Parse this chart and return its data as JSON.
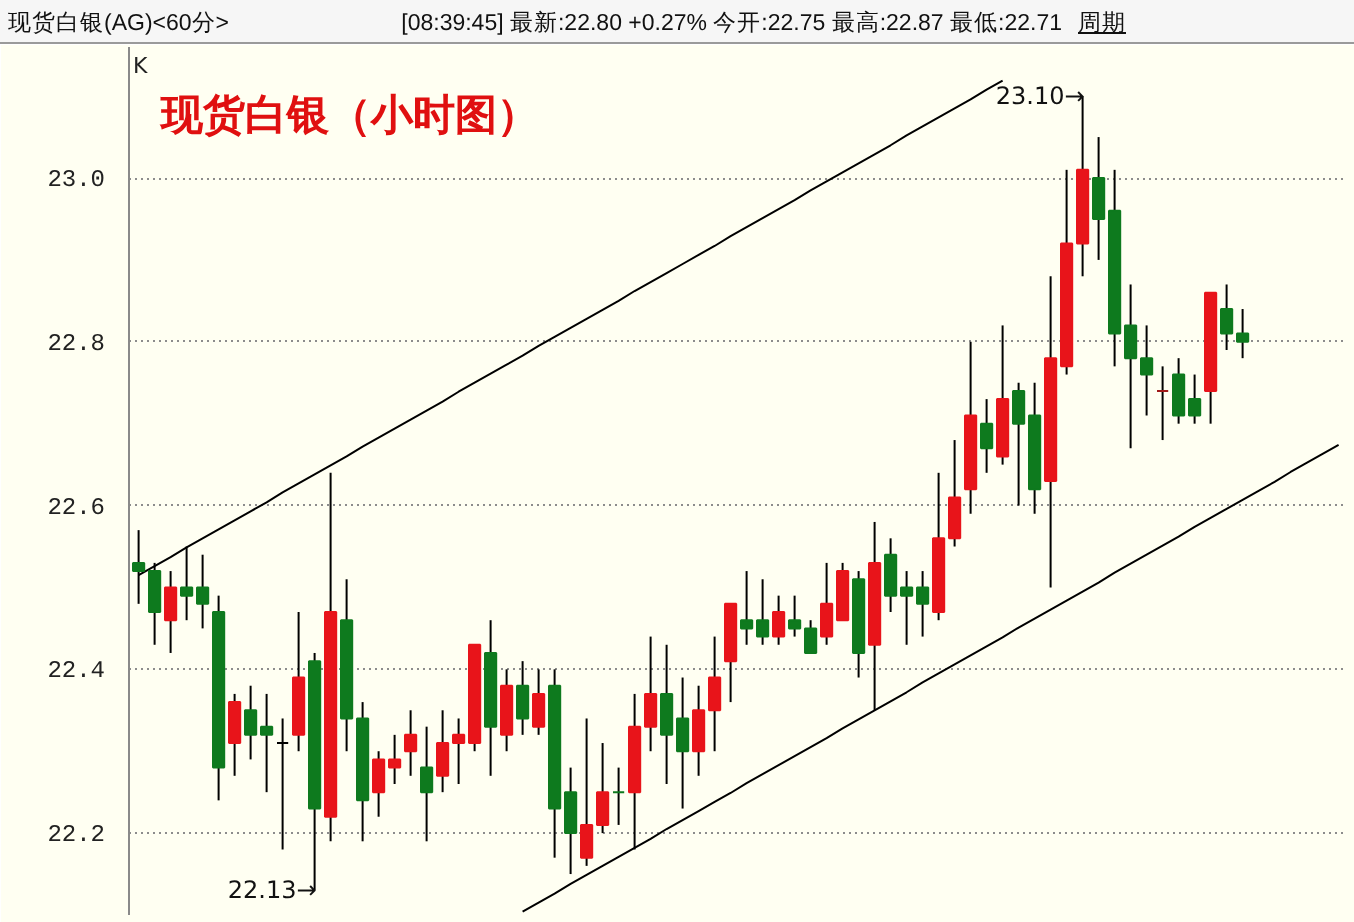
{
  "chart_data": {
    "type": "candlestick",
    "title": "现货白银（小时图）",
    "subtitle": "现货白银(AG)<60分>",
    "annotations": [
      "K",
      "[08:39:45] 最新:22.80 +0.27% 今开:22.75 最高:22.87 最低:22.71",
      "周期",
      "23.10→",
      "22.13→"
    ],
    "categories": [
      null,
      null,
      null,
      null,
      null,
      null,
      null,
      null,
      null,
      null,
      null,
      null,
      null,
      null,
      null,
      null,
      null,
      null,
      null,
      null,
      null,
      null,
      null,
      null,
      null,
      null,
      null,
      null,
      null,
      null,
      null,
      null,
      null,
      null,
      null,
      null,
      null,
      null,
      null,
      null,
      null,
      null,
      null,
      null,
      null,
      null,
      null,
      null,
      null,
      null,
      null,
      null,
      null,
      null,
      null,
      null,
      null,
      null,
      null,
      null,
      null,
      null,
      null,
      null,
      null,
      null,
      null,
      null,
      null,
      null,
      null,
      null,
      null,
      null,
      null,
      null
    ],
    "ohlc": [
      [
        22.53,
        22.57,
        22.48,
        22.52
      ],
      [
        22.52,
        22.53,
        22.43,
        22.47
      ],
      [
        22.46,
        22.52,
        22.42,
        22.5
      ],
      [
        22.5,
        22.55,
        22.46,
        22.49
      ],
      [
        22.5,
        22.54,
        22.45,
        22.48
      ],
      [
        22.47,
        22.49,
        22.24,
        22.28
      ],
      [
        22.31,
        22.37,
        22.27,
        22.36
      ],
      [
        22.35,
        22.38,
        22.29,
        22.32
      ],
      [
        22.33,
        22.37,
        22.25,
        22.32
      ],
      [
        22.31,
        22.34,
        22.18,
        22.31
      ],
      [
        22.32,
        22.47,
        22.3,
        22.39
      ],
      [
        22.41,
        22.42,
        22.13,
        22.23
      ],
      [
        22.22,
        22.64,
        22.19,
        22.47
      ],
      [
        22.46,
        22.51,
        22.3,
        22.34
      ],
      [
        22.34,
        22.36,
        22.19,
        22.24
      ],
      [
        22.25,
        22.3,
        22.22,
        22.29
      ],
      [
        22.28,
        22.32,
        22.26,
        22.29
      ],
      [
        22.3,
        22.35,
        22.27,
        22.32
      ],
      [
        22.28,
        22.33,
        22.19,
        22.25
      ],
      [
        22.27,
        22.35,
        22.25,
        22.31
      ],
      [
        22.31,
        22.34,
        22.26,
        22.32
      ],
      [
        22.31,
        22.43,
        22.3,
        22.43
      ],
      [
        22.42,
        22.46,
        22.27,
        22.33
      ],
      [
        22.32,
        22.4,
        22.3,
        22.38
      ],
      [
        22.38,
        22.41,
        22.32,
        22.34
      ],
      [
        22.33,
        22.4,
        22.32,
        22.37
      ],
      [
        22.38,
        22.4,
        22.17,
        22.23
      ],
      [
        22.25,
        22.28,
        22.15,
        22.2
      ],
      [
        22.17,
        22.34,
        22.16,
        22.21
      ],
      [
        22.21,
        22.31,
        22.2,
        22.25
      ],
      [
        22.25,
        22.28,
        22.21,
        22.25
      ],
      [
        22.25,
        22.37,
        22.18,
        22.33
      ],
      [
        22.33,
        22.44,
        22.3,
        22.37
      ],
      [
        22.37,
        22.43,
        22.26,
        22.32
      ],
      [
        22.34,
        22.39,
        22.23,
        22.3
      ],
      [
        22.3,
        22.38,
        22.27,
        22.35
      ],
      [
        22.35,
        22.44,
        22.3,
        22.39
      ],
      [
        22.41,
        22.48,
        22.36,
        22.48
      ],
      [
        22.46,
        22.52,
        22.43,
        22.45
      ],
      [
        22.46,
        22.51,
        22.43,
        22.44
      ],
      [
        22.44,
        22.49,
        22.43,
        22.47
      ],
      [
        22.46,
        22.49,
        22.44,
        22.45
      ],
      [
        22.45,
        22.46,
        22.42,
        22.42
      ],
      [
        22.44,
        22.53,
        22.43,
        22.48
      ],
      [
        22.46,
        22.53,
        22.46,
        22.52
      ],
      [
        22.51,
        22.52,
        22.39,
        22.42
      ],
      [
        22.43,
        22.58,
        22.35,
        22.53
      ],
      [
        22.54,
        22.56,
        22.47,
        22.49
      ],
      [
        22.5,
        22.52,
        22.43,
        22.49
      ],
      [
        22.5,
        22.52,
        22.44,
        22.48
      ],
      [
        22.47,
        22.64,
        22.46,
        22.56
      ],
      [
        22.56,
        22.68,
        22.55,
        22.61
      ],
      [
        22.62,
        22.8,
        22.59,
        22.71
      ],
      [
        22.7,
        22.73,
        22.64,
        22.67
      ],
      [
        22.66,
        22.82,
        22.65,
        22.73
      ],
      [
        22.74,
        22.75,
        22.6,
        22.7
      ],
      [
        22.71,
        22.75,
        22.59,
        22.62
      ],
      [
        22.63,
        22.88,
        22.5,
        22.78
      ],
      [
        22.77,
        23.01,
        22.76,
        22.92
      ],
      [
        22.92,
        23.1,
        22.88,
        23.01
      ],
      [
        23.0,
        23.05,
        22.9,
        22.95
      ],
      [
        22.96,
        23.01,
        22.77,
        22.81
      ],
      [
        22.82,
        22.87,
        22.67,
        22.78
      ],
      [
        22.78,
        22.82,
        22.71,
        22.76
      ],
      [
        22.74,
        22.77,
        22.68,
        22.74
      ],
      [
        22.76,
        22.78,
        22.7,
        22.71
      ],
      [
        22.73,
        22.76,
        22.7,
        22.71
      ],
      [
        22.74,
        22.86,
        22.7,
        22.86
      ],
      [
        22.84,
        22.87,
        22.79,
        22.81
      ],
      [
        22.81,
        22.84,
        22.78,
        22.8
      ],
      null,
      null,
      null,
      null,
      null,
      null
    ],
    "colors": [
      "#0e7a1e",
      "#0e7a1e",
      "#e8141a",
      "#0e7a1e",
      "#0e7a1e",
      "#0e7a1e",
      "#e8141a",
      "#0e7a1e",
      "#0e7a1e",
      "#000000",
      "#e8141a",
      "#0e7a1e",
      "#e8141a",
      "#0e7a1e",
      "#0e7a1e",
      "#e8141a",
      "#e8141a",
      "#e8141a",
      "#0e7a1e",
      "#e8141a",
      "#e8141a",
      "#e8141a",
      "#0e7a1e",
      "#e8141a",
      "#0e7a1e",
      "#e8141a",
      "#0e7a1e",
      "#0e7a1e",
      "#e8141a",
      "#e8141a",
      "#0e7a1e",
      "#e8141a",
      "#e8141a",
      "#0e7a1e",
      "#0e7a1e",
      "#e8141a",
      "#e8141a",
      "#e8141a",
      "#0e7a1e",
      "#0e7a1e",
      "#e8141a",
      "#0e7a1e",
      "#0e7a1e",
      "#e8141a",
      "#e8141a",
      "#0e7a1e",
      "#e8141a",
      "#0e7a1e",
      "#0e7a1e",
      "#0e7a1e",
      "#e8141a",
      "#e8141a",
      "#e8141a",
      "#0e7a1e",
      "#e8141a",
      "#0e7a1e",
      "#0e7a1e",
      "#e8141a",
      "#e8141a",
      "#e8141a",
      "#0e7a1e",
      "#0e7a1e",
      "#0e7a1e",
      "#0e7a1e",
      "#a01818",
      "#0e7a1e",
      "#0e7a1e",
      "#e8141a",
      "#0e7a1e",
      "#0e7a1e",
      null,
      null,
      null,
      null,
      null,
      null
    ],
    "series": [
      {
        "type": "line",
        "color": "#000000",
        "values": [
          22.515,
          22.526,
          22.537,
          22.549,
          22.56,
          22.571,
          22.582,
          22.593,
          22.604,
          22.616,
          22.627,
          22.638,
          22.649,
          22.66,
          22.672,
          22.683,
          22.694,
          22.705,
          22.716,
          22.727,
          22.739,
          22.75,
          22.761,
          22.772,
          22.783,
          22.795,
          22.806,
          22.817,
          22.828,
          22.839,
          22.85,
          22.862,
          22.873,
          22.884,
          22.895,
          22.906,
          22.917,
          22.929,
          22.94,
          22.951,
          22.962,
          22.973,
          22.985,
          22.996,
          23.007,
          23.018,
          23.029,
          23.04,
          23.052,
          23.063,
          23.074,
          23.085,
          23.096,
          23.108,
          23.119,
          null,
          null,
          null,
          null,
          null,
          null,
          null,
          null,
          null,
          null,
          null,
          null,
          null,
          null,
          null,
          null,
          null,
          null,
          null,
          null,
          null
        ]
      },
      {
        "type": "line",
        "color": "#000000",
        "values": [
          null,
          null,
          null,
          null,
          null,
          null,
          null,
          null,
          null,
          null,
          null,
          null,
          null,
          null,
          null,
          null,
          null,
          null,
          null,
          null,
          null,
          null,
          null,
          null,
          22.104,
          22.115,
          22.126,
          22.138,
          22.149,
          22.16,
          22.171,
          22.182,
          22.193,
          22.205,
          22.216,
          22.227,
          22.238,
          22.249,
          22.261,
          22.272,
          22.283,
          22.294,
          22.305,
          22.316,
          22.328,
          22.339,
          22.35,
          22.361,
          22.372,
          22.384,
          22.395,
          22.406,
          22.417,
          22.428,
          22.439,
          22.451,
          22.462,
          22.473,
          22.484,
          22.495,
          22.506,
          22.518,
          22.529,
          22.54,
          22.551,
          22.562,
          22.574,
          22.585,
          22.596,
          22.607,
          22.618,
          22.629,
          22.641,
          22.652,
          22.663,
          22.674
        ]
      }
    ],
    "ylim": [
      22.1,
      23.16
    ],
    "yticks": [
      22.2,
      22.4,
      22.6,
      22.8,
      {
        "value": 23,
        "label": "23.0"
      }
    ],
    "grid": "y",
    "tick_labels": "y"
  }
}
